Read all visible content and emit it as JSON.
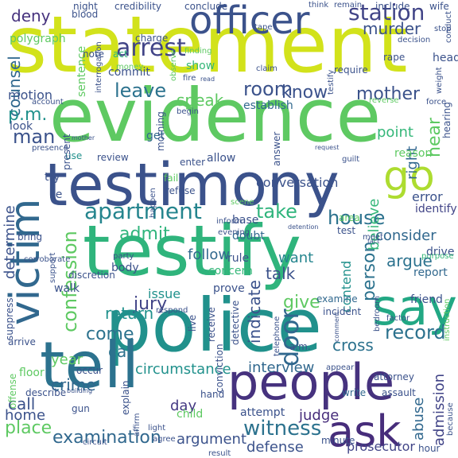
{
  "words": [
    {
      "text": "statement",
      "color": "#d2e21b"
    },
    {
      "text": "evidence",
      "color": "#5ec962"
    },
    {
      "text": "testimony",
      "color": "#3b528b"
    },
    {
      "text": "testify",
      "color": "#2fb47c"
    },
    {
      "text": "police",
      "color": "#21918c"
    },
    {
      "text": "people",
      "color": "#46327e"
    },
    {
      "text": "tell",
      "color": "#2c728e"
    },
    {
      "text": "victim",
      "color": "#31688e"
    },
    {
      "text": "officer",
      "color": "#3b528b"
    },
    {
      "text": "say",
      "color": "#22a884"
    },
    {
      "text": "ask",
      "color": "#472d7b"
    },
    {
      "text": "go",
      "color": "#addc30"
    },
    {
      "text": "arrest",
      "color": "#414487"
    },
    {
      "text": "station",
      "color": "#414487"
    },
    {
      "text": "apartment",
      "color": "#25858e"
    },
    {
      "text": "witness",
      "color": "#2c728e"
    },
    {
      "text": "take",
      "color": "#2fb47c"
    },
    {
      "text": "room",
      "color": "#3b528b"
    },
    {
      "text": "leave",
      "color": "#2c728e"
    },
    {
      "text": "know",
      "color": "#3b528b"
    },
    {
      "text": "house",
      "color": "#2c728e"
    },
    {
      "text": "record",
      "color": "#2c728e"
    },
    {
      "text": "examination",
      "color": "#31688e"
    },
    {
      "text": "mother",
      "color": "#3b528b"
    },
    {
      "text": "deny",
      "color": "#46327e"
    },
    {
      "text": "man",
      "color": "#3b528b"
    },
    {
      "text": "confession",
      "color": "#5ec962"
    },
    {
      "text": "give",
      "color": "#5ec962"
    },
    {
      "text": "admit",
      "color": "#2fb47c"
    },
    {
      "text": "jury",
      "color": "#414487"
    },
    {
      "text": "door",
      "color": "#31688e"
    },
    {
      "text": "come",
      "color": "#2c728e"
    },
    {
      "text": "car",
      "color": "#2c728e"
    },
    {
      "text": "interview",
      "color": "#31688e"
    },
    {
      "text": "circumstance",
      "color": "#21918c"
    },
    {
      "text": "indicate",
      "color": "#3b528b"
    },
    {
      "text": "abuse",
      "color": "#31688e"
    },
    {
      "text": "admission",
      "color": "#414487"
    },
    {
      "text": "counsel",
      "color": "#31688e"
    },
    {
      "text": "p.m.",
      "color": "#21918c"
    },
    {
      "text": "speak",
      "color": "#5ec962"
    },
    {
      "text": "murder",
      "color": "#3b528b"
    },
    {
      "text": "hear",
      "color": "#5ec962"
    },
    {
      "text": "right",
      "color": "#31688e"
    },
    {
      "text": "argue",
      "color": "#2c728e"
    },
    {
      "text": "cross",
      "color": "#2c728e"
    },
    {
      "text": "person",
      "color": "#2c728e"
    },
    {
      "text": "point",
      "color": "#35b779"
    },
    {
      "text": "return",
      "color": "#21918c"
    },
    {
      "text": "follow",
      "color": "#31688e"
    },
    {
      "text": "want",
      "color": "#25858e"
    },
    {
      "text": "talk",
      "color": "#3b528b"
    },
    {
      "text": "consider",
      "color": "#31688e"
    },
    {
      "text": "believe",
      "color": "#35b779"
    },
    {
      "text": "determine",
      "color": "#3b528b"
    },
    {
      "text": "day",
      "color": "#443983"
    },
    {
      "text": "crime",
      "color": "#31688e"
    },
    {
      "text": "call",
      "color": "#3b528b"
    },
    {
      "text": "home",
      "color": "#3b528b"
    },
    {
      "text": "place",
      "color": "#5ec962"
    },
    {
      "text": "argument",
      "color": "#3b528b"
    },
    {
      "text": "judge",
      "color": "#472d7b"
    },
    {
      "text": "defense",
      "color": "#3b528b"
    },
    {
      "text": "prosecutor",
      "color": "#414487"
    },
    {
      "text": "year",
      "color": "#5ec962"
    },
    {
      "text": "error",
      "color": "#3b528b"
    },
    {
      "text": "identify",
      "color": "#414487"
    },
    {
      "text": "conversation",
      "color": "#3b528b"
    },
    {
      "text": "reason",
      "color": "#5ec962"
    },
    {
      "text": "contend",
      "color": "#21918c"
    },
    {
      "text": "issue",
      "color": "#21918c"
    },
    {
      "text": "report",
      "color": "#31688e"
    },
    {
      "text": "motion",
      "color": "#3b528b"
    },
    {
      "text": "sentence",
      "color": "#5ec962"
    },
    {
      "text": "polygraph",
      "color": "#5ec962"
    },
    {
      "text": "blood",
      "color": "#3b528b"
    },
    {
      "text": "night",
      "color": "#3b528b"
    },
    {
      "text": "credibility",
      "color": "#3b528b"
    },
    {
      "text": "charge",
      "color": "#3b528b"
    },
    {
      "text": "note",
      "color": "#3b528b"
    },
    {
      "text": "act",
      "color": "#2fb47c"
    },
    {
      "text": "commit",
      "color": "#3b528b"
    },
    {
      "text": "show",
      "color": "#35b779"
    },
    {
      "text": "establish",
      "color": "#31688e"
    },
    {
      "text": "look",
      "color": "#3b528b"
    },
    {
      "text": "allow",
      "color": "#3b528b"
    },
    {
      "text": "get",
      "color": "#31688e"
    },
    {
      "text": "use",
      "color": "#21918c"
    },
    {
      "text": "review",
      "color": "#3b528b"
    },
    {
      "text": "try",
      "color": "#3b528b"
    },
    {
      "text": "lie",
      "color": "#3b528b"
    },
    {
      "text": "drive",
      "color": "#3b528b"
    },
    {
      "text": "friend",
      "color": "#3b528b"
    },
    {
      "text": "examine",
      "color": "#31688e"
    },
    {
      "text": "incident",
      "color": "#3b528b"
    },
    {
      "text": "attorney",
      "color": "#3b528b"
    },
    {
      "text": "assault",
      "color": "#3b528b"
    },
    {
      "text": "write",
      "color": "#31688e"
    },
    {
      "text": "hour",
      "color": "#3b528b"
    },
    {
      "text": "minute",
      "color": "#3b528b"
    },
    {
      "text": "attempt",
      "color": "#3b528b"
    },
    {
      "text": "hand",
      "color": "#3b528b"
    },
    {
      "text": "child",
      "color": "#5ec962"
    },
    {
      "text": "gun",
      "color": "#3b528b"
    },
    {
      "text": "floor",
      "color": "#5ec962"
    },
    {
      "text": "a.m.",
      "color": "#3b528b"
    },
    {
      "text": "rule",
      "color": "#3b528b"
    },
    {
      "text": "doubt",
      "color": "#31688e"
    },
    {
      "text": "body",
      "color": "#3b528b"
    },
    {
      "text": "concern",
      "color": "#35b779"
    },
    {
      "text": "prove",
      "color": "#3b528b"
    },
    {
      "text": "walk",
      "color": "#3b528b"
    },
    {
      "text": "arrive",
      "color": "#3b528b"
    },
    {
      "text": "suppress",
      "color": "#3b528b"
    },
    {
      "text": "base",
      "color": "#3b528b"
    },
    {
      "text": "test",
      "color": "#3b528b"
    },
    {
      "text": "area",
      "color": "#5ec962"
    },
    {
      "text": "purpose",
      "color": "#35b779"
    },
    {
      "text": "instruction",
      "color": "#5ec962"
    },
    {
      "text": "head",
      "color": "#3b528b"
    },
    {
      "text": "weight",
      "color": "#3b528b"
    },
    {
      "text": "rape",
      "color": "#3b528b"
    },
    {
      "text": "wife",
      "color": "#3b528b"
    },
    {
      "text": "stop",
      "color": "#3b528b"
    },
    {
      "text": "include",
      "color": "#3b528b"
    },
    {
      "text": "conclude",
      "color": "#3b528b"
    },
    {
      "text": "require",
      "color": "#3b528b"
    },
    {
      "text": "claim",
      "color": "#3b528b"
    },
    {
      "text": "fire",
      "color": "#3b528b"
    },
    {
      "text": "begin",
      "color": "#3b528b"
    },
    {
      "text": "finding",
      "color": "#5ec962"
    },
    {
      "text": "morning",
      "color": "#3b528b"
    },
    {
      "text": "reverse",
      "color": "#5ec962"
    },
    {
      "text": "answer",
      "color": "#3b528b"
    },
    {
      "text": "fail",
      "color": "#5ec962"
    },
    {
      "text": "refuse",
      "color": "#3b528b"
    },
    {
      "text": "inform",
      "color": "#3b528b"
    },
    {
      "text": "evening",
      "color": "#3b528b"
    },
    {
      "text": "enter",
      "color": "#3b528b"
    },
    {
      "text": "scene",
      "color": "#5ec962"
    },
    {
      "text": "bring",
      "color": "#3b528b"
    },
    {
      "text": "support",
      "color": "#3b528b"
    },
    {
      "text": "corroborate",
      "color": "#3b528b"
    },
    {
      "text": "discretion",
      "color": "#3b528b"
    },
    {
      "text": "party",
      "color": "#3b528b"
    },
    {
      "text": "receive",
      "color": "#3b528b"
    },
    {
      "text": "respond",
      "color": "#3b528b"
    },
    {
      "text": "explain",
      "color": "#3b528b"
    },
    {
      "text": "describe",
      "color": "#3b528b"
    },
    {
      "text": "offense",
      "color": "#5ec962"
    },
    {
      "text": "occur",
      "color": "#3b528b"
    },
    {
      "text": "circuit",
      "color": "#3b528b"
    },
    {
      "text": "agree",
      "color": "#3b528b"
    },
    {
      "text": "result",
      "color": "#3b528b"
    },
    {
      "text": "because",
      "color": "#3b528b"
    },
    {
      "text": "live",
      "color": "#3b528b"
    },
    {
      "text": "detective",
      "color": "#3b528b"
    },
    {
      "text": "conviction",
      "color": "#3b528b"
    },
    {
      "text": "bedroom",
      "color": "#3b528b"
    },
    {
      "text": "present",
      "color": "#3b528b"
    },
    {
      "text": "presence",
      "color": "#3b528b"
    },
    {
      "text": "meet",
      "color": "#3b528b"
    },
    {
      "text": "factor",
      "color": "#3b528b"
    },
    {
      "text": "testify",
      "color": "#3b528b"
    },
    {
      "text": "hearing",
      "color": "#3b528b"
    },
    {
      "text": "force",
      "color": "#3b528b"
    },
    {
      "text": "money",
      "color": "#5ec962"
    },
    {
      "text": "tape",
      "color": "#3b528b"
    },
    {
      "text": "decision",
      "color": "#3b528b"
    },
    {
      "text": "conduct",
      "color": "#3b528b"
    },
    {
      "text": "observe",
      "color": "#5ec962"
    },
    {
      "text": "interrogation",
      "color": "#3b528b"
    },
    {
      "text": "account",
      "color": "#3b528b"
    },
    {
      "text": "mother",
      "color": "#3b528b"
    },
    {
      "text": "read",
      "color": "#3b528b"
    },
    {
      "text": "request",
      "color": "#3b528b"
    },
    {
      "text": "guilt",
      "color": "#3b528b"
    },
    {
      "text": "happen",
      "color": "#3b528b"
    },
    {
      "text": "light",
      "color": "#3b528b"
    },
    {
      "text": "affirm",
      "color": "#3b528b"
    },
    {
      "text": "building",
      "color": "#3b528b"
    },
    {
      "text": "comment",
      "color": "#3b528b"
    },
    {
      "text": "telephone",
      "color": "#3b528b"
    },
    {
      "text": "fact",
      "color": "#3b528b"
    },
    {
      "text": "appear",
      "color": "#3b528b"
    },
    {
      "text": "detention",
      "color": "#3b528b"
    },
    {
      "text": "think",
      "color": "#3b528b"
    },
    {
      "text": "remain",
      "color": "#3b528b"
    }
  ]
}
